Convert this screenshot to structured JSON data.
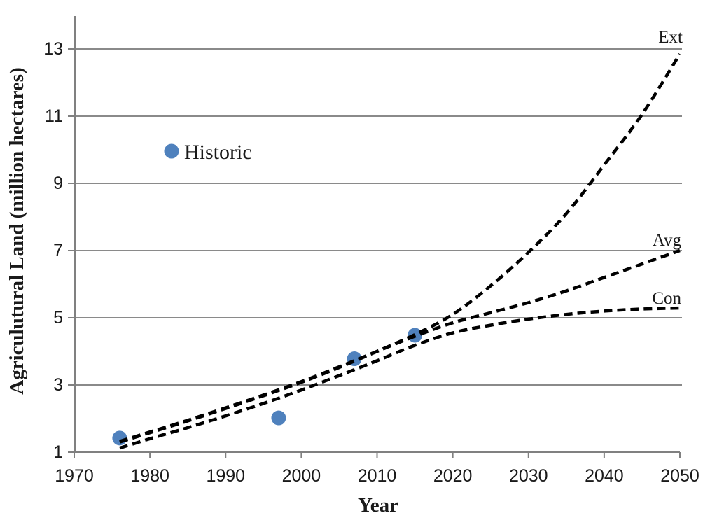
{
  "chart_data": {
    "type": "line",
    "title": "",
    "xlabel": "Year",
    "ylabel": "Agriculutural Land (million hectares)",
    "xlim": [
      1970,
      2050
    ],
    "ylim": [
      1,
      13
    ],
    "x_ticks": [
      "1970",
      "1980",
      "1990",
      "2000",
      "2010",
      "2020",
      "2030",
      "2040",
      "2050"
    ],
    "y_ticks": [
      "1",
      "3",
      "5",
      "7",
      "9",
      "11",
      "13"
    ],
    "grid": "horizontal-only",
    "legend": {
      "label": "Historic",
      "position": "inside-upper-left"
    },
    "scatter_series": {
      "name": "Historic",
      "marker": "circle",
      "color": "#4F81BD",
      "points": [
        {
          "x": 1976,
          "y": 1.42
        },
        {
          "x": 1997,
          "y": 2.02
        },
        {
          "x": 2007,
          "y": 3.78
        },
        {
          "x": 2015,
          "y": 4.48
        }
      ]
    },
    "line_series": [
      {
        "name": "Ext",
        "style": "dashed",
        "color": "#000000",
        "x": [
          1976,
          1980,
          1985,
          1990,
          1995,
          2000,
          2005,
          2010,
          2015,
          2020,
          2025,
          2030,
          2035,
          2040,
          2045,
          2050
        ],
        "y": [
          1.3,
          1.58,
          1.93,
          2.3,
          2.68,
          3.08,
          3.52,
          4.0,
          4.5,
          5.1,
          5.95,
          6.95,
          8.1,
          9.55,
          11.05,
          12.85
        ]
      },
      {
        "name": "Avg",
        "style": "dashed",
        "color": "#000000",
        "x": [
          1976,
          1980,
          1985,
          1990,
          1995,
          2000,
          2005,
          2010,
          2015,
          2020,
          2025,
          2030,
          2035,
          2040,
          2045,
          2050
        ],
        "y": [
          1.32,
          1.6,
          1.95,
          2.32,
          2.7,
          3.1,
          3.54,
          4.0,
          4.45,
          4.85,
          5.15,
          5.45,
          5.8,
          6.2,
          6.6,
          7.0
        ]
      },
      {
        "name": "Con",
        "style": "dashed",
        "color": "#000000",
        "x": [
          1976,
          1980,
          1985,
          1990,
          1995,
          2000,
          2005,
          2010,
          2015,
          2020,
          2025,
          2030,
          2035,
          2040,
          2045,
          2050
        ],
        "y": [
          1.12,
          1.4,
          1.73,
          2.08,
          2.45,
          2.85,
          3.28,
          3.72,
          4.18,
          4.55,
          4.78,
          4.96,
          5.1,
          5.2,
          5.26,
          5.29
        ]
      }
    ],
    "colors": {
      "marker": "#4F81BD",
      "line": "#000000",
      "grid": "#8a8a8a",
      "axis": "#808080",
      "text": "#1a1a1a",
      "background": "#ffffff"
    }
  }
}
